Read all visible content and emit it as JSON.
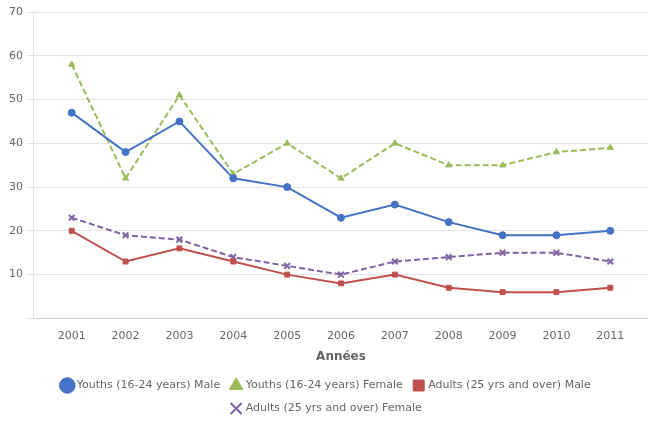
{
  "chart_data": {
    "type": "line",
    "x": [
      2001,
      2002,
      2003,
      2004,
      2005,
      2006,
      2007,
      2008,
      2009,
      2010,
      2011
    ],
    "series": [
      {
        "name": "Youths (16-24 years) Male",
        "color": "#4472C4",
        "marker": "circle",
        "line_style": "solid",
        "values": [
          47,
          38,
          45,
          32,
          30,
          23,
          26,
          22,
          19,
          19,
          20
        ]
      },
      {
        "name": "Youths (16-24 years) Female",
        "color": "#9BBB59",
        "marker": "triangle",
        "line_style": "dashed",
        "values": [
          58,
          32,
          51,
          33,
          40,
          32,
          40,
          35,
          35,
          38,
          39
        ]
      },
      {
        "name": "Adults (25 yrs and over) Male",
        "color": "#C0504D",
        "marker": "square",
        "line_style": "solid",
        "values": [
          20,
          13,
          16,
          13,
          10,
          8,
          10,
          7,
          6,
          6,
          7
        ]
      },
      {
        "name": "Adults (25 yrs and over) Female",
        "color": "#8064A2",
        "marker": "x",
        "line_style": "dashed",
        "values": [
          23,
          19,
          18,
          14,
          12,
          10,
          13,
          14,
          15,
          15,
          13
        ]
      }
    ],
    "x_label": "Années",
    "xlim": [
      2000.3,
      2011.7
    ],
    "xticks": [
      2001,
      2002,
      2003,
      2004,
      2005,
      2006,
      2007,
      2008,
      2009,
      2010,
      2011
    ],
    "ylim": [
      0,
      70
    ],
    "yticks": [
      {
        "value": 0,
        "label": ""
      },
      10,
      20,
      30,
      40,
      50,
      60,
      70
    ],
    "grid": "y",
    "legend": "bottom"
  }
}
